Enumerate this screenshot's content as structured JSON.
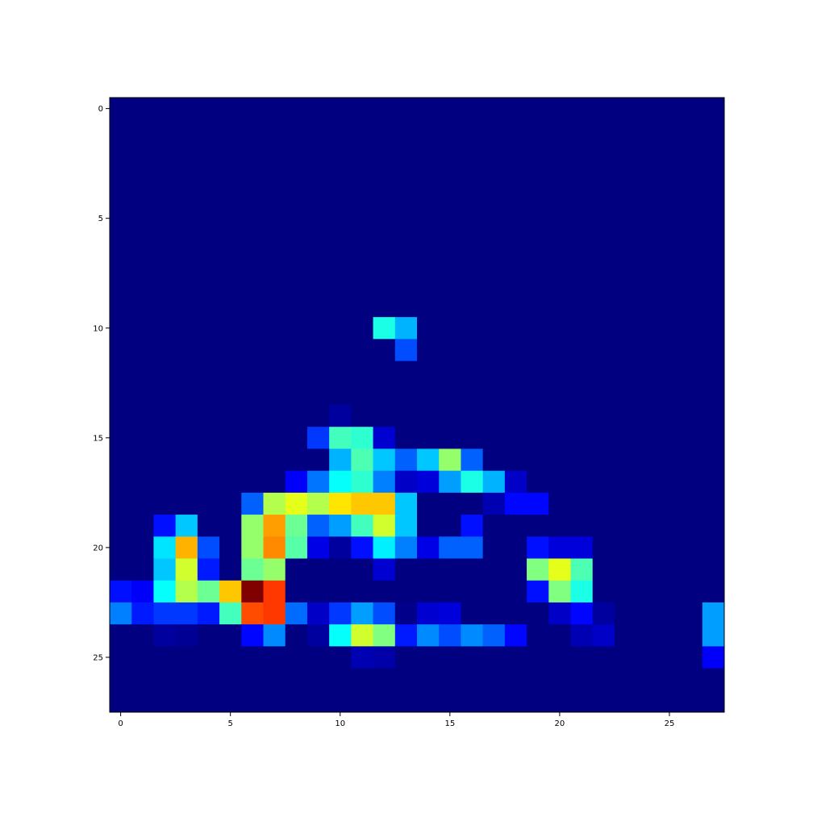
{
  "chart_data": {
    "type": "heatmap",
    "title": "",
    "xlabel": "",
    "ylabel": "",
    "colormap": "jet",
    "value_range": [
      0,
      1
    ],
    "rows": 28,
    "cols": 28,
    "x_ticks": [
      0,
      5,
      10,
      15,
      20,
      25
    ],
    "y_ticks": [
      0,
      5,
      10,
      15,
      20,
      25
    ],
    "xlim": [
      -0.5,
      27.5
    ],
    "ylim": [
      27.5,
      -0.5
    ],
    "grid": false,
    "cells": [
      [
        10,
        12,
        0.4
      ],
      [
        10,
        13,
        0.3
      ],
      [
        11,
        13,
        0.2
      ],
      [
        14,
        10,
        0.03
      ],
      [
        15,
        9,
        0.18
      ],
      [
        15,
        10,
        0.44
      ],
      [
        15,
        11,
        0.42
      ],
      [
        15,
        12,
        0.08
      ],
      [
        16,
        10,
        0.3
      ],
      [
        16,
        11,
        0.45
      ],
      [
        16,
        12,
        0.32
      ],
      [
        16,
        13,
        0.22
      ],
      [
        16,
        14,
        0.32
      ],
      [
        16,
        15,
        0.52
      ],
      [
        16,
        16,
        0.22
      ],
      [
        17,
        8,
        0.12
      ],
      [
        17,
        9,
        0.24
      ],
      [
        17,
        10,
        0.38
      ],
      [
        17,
        11,
        0.42
      ],
      [
        17,
        12,
        0.25
      ],
      [
        17,
        13,
        0.07
      ],
      [
        17,
        14,
        0.09
      ],
      [
        17,
        15,
        0.28
      ],
      [
        17,
        16,
        0.4
      ],
      [
        17,
        17,
        0.3
      ],
      [
        17,
        18,
        0.07
      ],
      [
        18,
        6,
        0.22
      ],
      [
        18,
        7,
        0.55
      ],
      [
        18,
        8,
        0.6
      ],
      [
        18,
        9,
        0.55
      ],
      [
        18,
        10,
        0.65
      ],
      [
        18,
        11,
        0.68
      ],
      [
        18,
        12,
        0.68
      ],
      [
        18,
        13,
        0.32
      ],
      [
        18,
        17,
        0.05
      ],
      [
        18,
        18,
        0.13
      ],
      [
        18,
        19,
        0.13
      ],
      [
        19,
        2,
        0.14
      ],
      [
        19,
        3,
        0.32
      ],
      [
        19,
        6,
        0.52
      ],
      [
        19,
        7,
        0.72
      ],
      [
        19,
        8,
        0.48
      ],
      [
        19,
        9,
        0.22
      ],
      [
        19,
        10,
        0.28
      ],
      [
        19,
        11,
        0.44
      ],
      [
        19,
        12,
        0.58
      ],
      [
        19,
        13,
        0.32
      ],
      [
        19,
        16,
        0.14
      ],
      [
        20,
        2,
        0.35
      ],
      [
        20,
        3,
        0.7
      ],
      [
        20,
        4,
        0.2
      ],
      [
        20,
        6,
        0.52
      ],
      [
        20,
        7,
        0.74
      ],
      [
        20,
        8,
        0.46
      ],
      [
        20,
        9,
        0.1
      ],
      [
        20,
        10,
        0.03
      ],
      [
        20,
        11,
        0.14
      ],
      [
        20,
        12,
        0.36
      ],
      [
        20,
        13,
        0.25
      ],
      [
        20,
        14,
        0.1
      ],
      [
        20,
        15,
        0.22
      ],
      [
        20,
        16,
        0.22
      ],
      [
        20,
        19,
        0.14
      ],
      [
        20,
        20,
        0.09
      ],
      [
        20,
        21,
        0.09
      ],
      [
        21,
        2,
        0.32
      ],
      [
        21,
        3,
        0.58
      ],
      [
        21,
        4,
        0.15
      ],
      [
        21,
        6,
        0.48
      ],
      [
        21,
        7,
        0.52
      ],
      [
        21,
        12,
        0.08
      ],
      [
        21,
        19,
        0.5
      ],
      [
        21,
        20,
        0.6
      ],
      [
        21,
        21,
        0.45
      ],
      [
        22,
        0,
        0.14
      ],
      [
        22,
        1,
        0.12
      ],
      [
        22,
        2,
        0.38
      ],
      [
        22,
        3,
        0.55
      ],
      [
        22,
        4,
        0.48
      ],
      [
        22,
        5,
        0.68
      ],
      [
        22,
        6,
        1.0
      ],
      [
        22,
        7,
        0.82
      ],
      [
        22,
        19,
        0.14
      ],
      [
        22,
        20,
        0.5
      ],
      [
        22,
        21,
        0.4
      ],
      [
        23,
        0,
        0.25
      ],
      [
        23,
        1,
        0.15
      ],
      [
        23,
        2,
        0.18
      ],
      [
        23,
        3,
        0.18
      ],
      [
        23,
        4,
        0.15
      ],
      [
        23,
        5,
        0.44
      ],
      [
        23,
        6,
        0.8
      ],
      [
        23,
        7,
        0.82
      ],
      [
        23,
        8,
        0.23
      ],
      [
        23,
        9,
        0.07
      ],
      [
        23,
        10,
        0.18
      ],
      [
        23,
        11,
        0.28
      ],
      [
        23,
        12,
        0.2
      ],
      [
        23,
        13,
        0.01
      ],
      [
        23,
        14,
        0.08
      ],
      [
        23,
        15,
        0.09
      ],
      [
        23,
        20,
        0.07
      ],
      [
        23,
        21,
        0.13
      ],
      [
        23,
        22,
        0.03
      ],
      [
        23,
        27,
        0.28
      ],
      [
        24,
        2,
        0.03
      ],
      [
        24,
        3,
        0.02
      ],
      [
        24,
        6,
        0.13
      ],
      [
        24,
        7,
        0.26
      ],
      [
        24,
        9,
        0.03
      ],
      [
        24,
        10,
        0.38
      ],
      [
        24,
        11,
        0.58
      ],
      [
        24,
        12,
        0.5
      ],
      [
        24,
        13,
        0.15
      ],
      [
        24,
        14,
        0.26
      ],
      [
        24,
        15,
        0.2
      ],
      [
        24,
        16,
        0.26
      ],
      [
        24,
        17,
        0.22
      ],
      [
        24,
        18,
        0.13
      ],
      [
        24,
        21,
        0.05
      ],
      [
        24,
        22,
        0.07
      ],
      [
        24,
        27,
        0.28
      ],
      [
        25,
        11,
        0.05
      ],
      [
        25,
        12,
        0.04
      ],
      [
        25,
        27,
        0.12
      ]
    ]
  }
}
